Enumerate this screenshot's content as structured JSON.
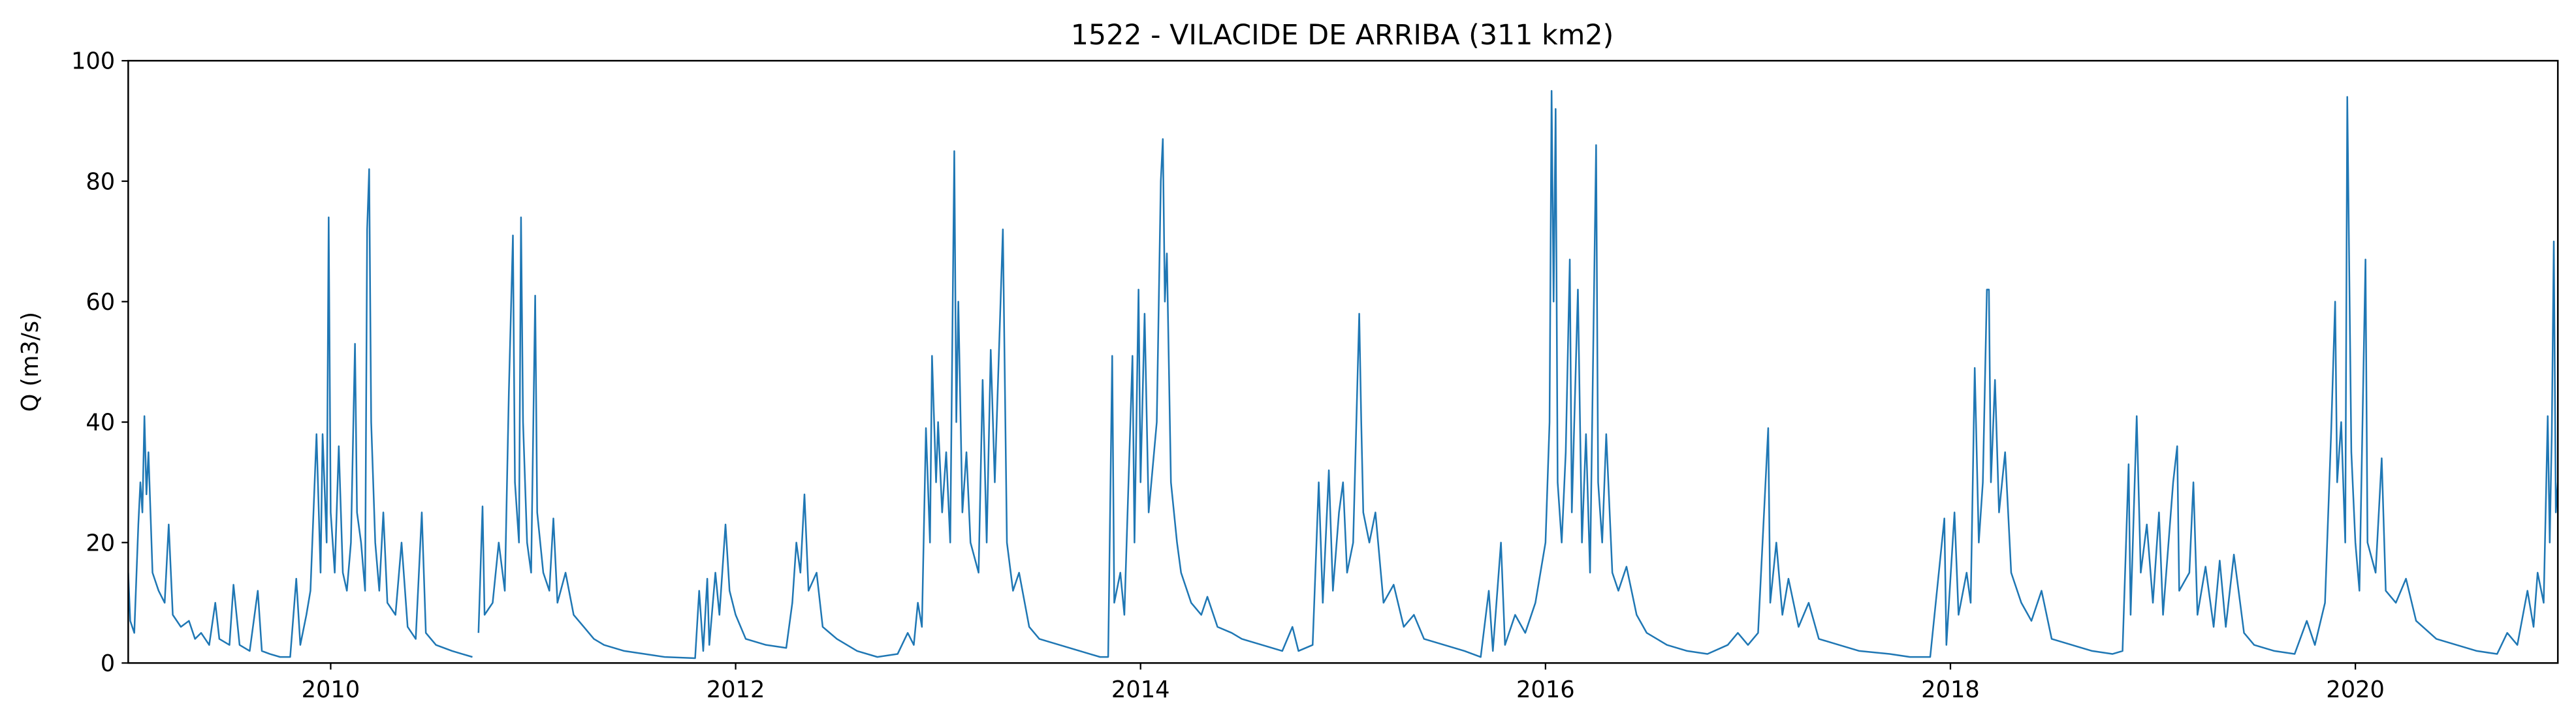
{
  "chart_data": {
    "type": "line",
    "title": "1522 - VILACIDE DE ARRIBA (311 km2)",
    "y_label": "Q (m3/s)",
    "color": "#1f77b4",
    "xlim": [
      2009,
      2021
    ],
    "xticks": [
      2010,
      2012,
      2014,
      2016,
      2018,
      2020
    ],
    "ylim": [
      0,
      100
    ],
    "yticks": [
      0,
      20,
      40,
      60,
      80,
      100
    ],
    "grid": false,
    "x": [
      2009.0,
      2009.01,
      2009.03,
      2009.05,
      2009.06,
      2009.07,
      2009.08,
      2009.09,
      2009.1,
      2009.12,
      2009.15,
      2009.18,
      2009.2,
      2009.22,
      2009.26,
      2009.3,
      2009.33,
      2009.36,
      2009.4,
      2009.43,
      2009.45,
      2009.5,
      2009.52,
      2009.55,
      2009.6,
      2009.64,
      2009.66,
      2009.7,
      2009.75,
      2009.8,
      2009.83,
      2009.85,
      2009.88,
      2009.9,
      2009.93,
      2009.95,
      2009.96,
      2009.98,
      2009.99,
      2010.0,
      2010.02,
      2010.04,
      2010.06,
      2010.08,
      2010.1,
      2010.12,
      2010.13,
      2010.15,
      2010.17,
      2010.18,
      2010.19,
      2010.2,
      2010.22,
      2010.24,
      2010.26,
      2010.28,
      2010.32,
      2010.35,
      2010.38,
      2010.42,
      2010.45,
      2010.47,
      2010.52,
      2010.6,
      2010.65,
      2010.7,
      2010.71,
      2010.73,
      2010.75,
      2010.76,
      2010.8,
      2010.83,
      2010.86,
      2010.88,
      2010.9,
      2010.91,
      2010.93,
      2010.94,
      2010.95,
      2010.97,
      2010.99,
      2011.01,
      2011.02,
      2011.05,
      2011.08,
      2011.1,
      2011.12,
      2011.16,
      2011.2,
      2011.25,
      2011.3,
      2011.35,
      2011.45,
      2011.55,
      2011.65,
      2011.8,
      2011.82,
      2011.84,
      2011.86,
      2011.87,
      2011.9,
      2011.92,
      2011.95,
      2011.97,
      2012.0,
      2012.05,
      2012.15,
      2012.25,
      2012.28,
      2012.3,
      2012.32,
      2012.34,
      2012.36,
      2012.4,
      2012.43,
      2012.5,
      2012.6,
      2012.7,
      2012.8,
      2012.85,
      2012.88,
      2012.9,
      2012.92,
      2012.94,
      2012.96,
      2012.97,
      2012.99,
      2013.0,
      2013.02,
      2013.04,
      2013.06,
      2013.08,
      2013.09,
      2013.1,
      2013.12,
      2013.14,
      2013.16,
      2013.2,
      2013.22,
      2013.24,
      2013.26,
      2013.28,
      2013.32,
      2013.34,
      2013.37,
      2013.4,
      2013.45,
      2013.5,
      2013.6,
      2013.7,
      2013.75,
      2013.8,
      2013.84,
      2013.86,
      2013.87,
      2013.9,
      2013.92,
      2013.96,
      2013.97,
      2013.99,
      2014.0,
      2014.02,
      2014.04,
      2014.08,
      2014.1,
      2014.11,
      2014.12,
      2014.13,
      2014.15,
      2014.18,
      2014.2,
      2014.25,
      2014.3,
      2014.33,
      2014.38,
      2014.45,
      2014.5,
      2014.6,
      2014.7,
      2014.75,
      2014.78,
      2014.85,
      2014.88,
      2014.9,
      2014.93,
      2014.95,
      2014.98,
      2015.0,
      2015.02,
      2015.05,
      2015.08,
      2015.09,
      2015.1,
      2015.13,
      2015.16,
      2015.2,
      2015.25,
      2015.3,
      2015.35,
      2015.4,
      2015.5,
      2015.6,
      2015.68,
      2015.72,
      2015.74,
      2015.78,
      2015.8,
      2015.85,
      2015.9,
      2015.95,
      2016.0,
      2016.02,
      2016.03,
      2016.04,
      2016.05,
      2016.06,
      2016.08,
      2016.1,
      2016.12,
      2016.13,
      2016.16,
      2016.18,
      2016.2,
      2016.22,
      2016.25,
      2016.26,
      2016.28,
      2016.3,
      2016.33,
      2016.36,
      2016.4,
      2016.45,
      2016.5,
      2016.6,
      2016.7,
      2016.8,
      2016.9,
      2016.95,
      2017.0,
      2017.05,
      2017.1,
      2017.11,
      2017.14,
      2017.17,
      2017.2,
      2017.25,
      2017.3,
      2017.35,
      2017.45,
      2017.55,
      2017.7,
      2017.8,
      2017.9,
      2017.97,
      2017.98,
      2018.02,
      2018.04,
      2018.08,
      2018.1,
      2018.12,
      2018.14,
      2018.16,
      2018.18,
      2018.19,
      2018.2,
      2018.22,
      2018.24,
      2018.27,
      2018.3,
      2018.35,
      2018.4,
      2018.45,
      2018.5,
      2018.6,
      2018.7,
      2018.8,
      2018.85,
      2018.88,
      2018.89,
      2018.92,
      2018.94,
      2018.97,
      2019.0,
      2019.03,
      2019.05,
      2019.1,
      2019.12,
      2019.13,
      2019.18,
      2019.2,
      2019.22,
      2019.26,
      2019.3,
      2019.33,
      2019.36,
      2019.4,
      2019.45,
      2019.5,
      2019.6,
      2019.7,
      2019.76,
      2019.8,
      2019.85,
      2019.88,
      2019.9,
      2019.91,
      2019.93,
      2019.95,
      2019.96,
      2019.98,
      2020.0,
      2020.02,
      2020.05,
      2020.06,
      2020.1,
      2020.13,
      2020.15,
      2020.2,
      2020.25,
      2020.3,
      2020.4,
      2020.5,
      2020.6,
      2020.7,
      2020.75,
      2020.8,
      2020.85,
      2020.88,
      2020.9,
      2020.93,
      2020.95,
      2020.96,
      2020.97,
      2020.98,
      2020.99,
      2021.0
    ],
    "values": [
      15,
      7,
      5,
      23,
      30,
      25,
      41,
      28,
      35,
      15,
      12,
      10,
      23,
      8,
      6,
      7,
      4,
      5,
      3,
      10,
      4,
      3,
      13,
      3,
      2,
      12,
      2,
      1.5,
      1,
      1,
      14,
      3,
      8,
      12,
      38,
      15,
      38,
      20,
      74,
      25,
      15,
      36,
      15,
      12,
      20,
      53,
      25,
      20,
      12,
      72,
      82,
      40,
      20,
      12,
      25,
      10,
      8,
      20,
      6,
      4,
      25,
      5,
      3,
      2,
      1.5,
      1,
      null,
      5,
      26,
      8,
      10,
      20,
      12,
      45,
      71,
      30,
      20,
      74,
      40,
      20,
      15,
      61,
      25,
      15,
      12,
      24,
      10,
      15,
      8,
      6,
      4,
      3,
      2,
      1.5,
      1,
      0.8,
      12,
      2,
      14,
      3,
      15,
      8,
      23,
      12,
      8,
      4,
      3,
      2.5,
      10,
      20,
      15,
      28,
      12,
      15,
      6,
      4,
      2,
      1,
      1.5,
      5,
      3,
      10,
      6,
      39,
      20,
      51,
      30,
      40,
      25,
      35,
      20,
      85,
      40,
      60,
      25,
      35,
      20,
      15,
      47,
      20,
      52,
      30,
      72,
      20,
      12,
      15,
      6,
      4,
      3,
      2,
      1.5,
      1,
      1,
      51,
      10,
      15,
      8,
      51,
      20,
      62,
      30,
      58,
      25,
      40,
      80,
      87,
      60,
      68,
      30,
      20,
      15,
      10,
      8,
      11,
      6,
      5,
      4,
      3,
      2,
      6,
      2,
      3,
      30,
      10,
      32,
      12,
      25,
      30,
      15,
      20,
      58,
      40,
      25,
      20,
      25,
      10,
      13,
      6,
      8,
      4,
      3,
      2,
      1,
      12,
      2,
      20,
      3,
      8,
      5,
      10,
      20,
      40,
      95,
      60,
      92,
      30,
      20,
      35,
      67,
      25,
      62,
      20,
      38,
      15,
      86,
      30,
      20,
      38,
      15,
      12,
      16,
      8,
      5,
      3,
      2,
      1.5,
      3,
      5,
      3,
      5,
      39,
      10,
      20,
      8,
      14,
      6,
      10,
      4,
      3,
      2,
      1.5,
      1,
      1,
      24,
      3,
      25,
      8,
      15,
      10,
      49,
      20,
      30,
      62,
      62,
      30,
      47,
      25,
      35,
      15,
      10,
      7,
      12,
      4,
      3,
      2,
      1.5,
      2,
      33,
      8,
      41,
      15,
      23,
      10,
      25,
      8,
      30,
      36,
      12,
      15,
      30,
      8,
      16,
      6,
      17,
      6,
      18,
      5,
      3,
      2,
      1.5,
      7,
      3,
      10,
      38,
      60,
      30,
      40,
      20,
      94,
      35,
      20,
      12,
      67,
      20,
      15,
      34,
      12,
      10,
      14,
      7,
      4,
      3,
      2,
      1.5,
      5,
      3,
      12,
      6,
      15,
      10,
      41,
      20,
      38,
      70,
      25,
      30
    ]
  }
}
